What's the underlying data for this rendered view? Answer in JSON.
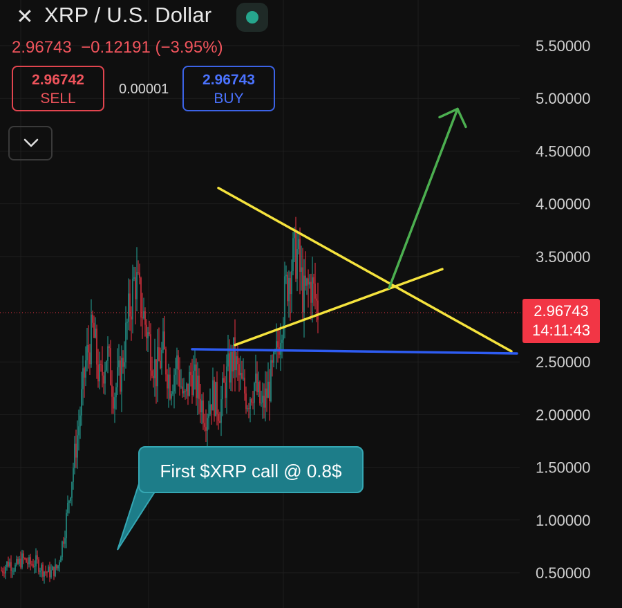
{
  "header": {
    "title": "XRP / U.S. Dollar",
    "quote_line": "2.96743  −0.12191 (−3.95%)",
    "sell": {
      "price": "2.96742",
      "label": "SELL"
    },
    "spread": "0.00001",
    "buy": {
      "price": "2.96743",
      "label": "BUY"
    }
  },
  "current_price_tag": {
    "price": "2.96743",
    "countdown": "14:11:43"
  },
  "callout": {
    "text": "First $XRP call @ 0.8$"
  },
  "icons": {
    "close": "close-icon",
    "status": "market-open-dot-icon",
    "dropdown": "chevron-down-icon"
  },
  "colors": {
    "background": "#0f0f0f",
    "down": "#f23645",
    "up": "#26a69a",
    "buy": "#3c63e6",
    "trendline_yellow": "#f5e33d",
    "support_blue": "#2e5cf2",
    "arrow_green": "#4caf50",
    "callout": "#1d7d89"
  },
  "chart_data": {
    "type": "candlestick",
    "symbol": "XRP / U.S. Dollar",
    "y_axis": {
      "ticks": [
        "5.50000",
        "5.00000",
        "4.50000",
        "4.00000",
        "3.50000",
        "2.50000",
        "2.00000",
        "1.50000",
        "1.00000",
        "0.50000"
      ],
      "range": [
        0.15,
        5.8
      ]
    },
    "current_price": 2.96743,
    "price_path": [
      0.52,
      0.6,
      0.55,
      0.63,
      0.58,
      0.6,
      0.52,
      0.5,
      0.55,
      0.9,
      1.4,
      1.9,
      2.5,
      2.8,
      2.3,
      2.6,
      2.2,
      2.4,
      2.9,
      3.3,
      3.0,
      2.7,
      2.4,
      2.6,
      2.3,
      2.5,
      2.1,
      2.4,
      2.2,
      2.0,
      2.2,
      2.05,
      2.35,
      2.55,
      2.3,
      2.15,
      2.3,
      2.05,
      2.25,
      2.5,
      3.0,
      3.4,
      3.55,
      3.1,
      3.25,
      3.0
    ],
    "drawings": {
      "upper_trendline": {
        "start": 4.15,
        "end": 2.6
      },
      "lower_trendline": {
        "start": 2.66,
        "end": 3.38
      },
      "support_line": {
        "start": 2.62,
        "end": 2.58
      },
      "arrow": {
        "from": 3.2,
        "to": 4.9
      }
    }
  }
}
